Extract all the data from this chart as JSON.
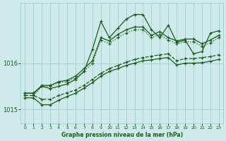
{
  "title": "Graphe pression niveau de la mer (hPa)",
  "background_color": "#ceeaea",
  "grid_color": "#9ecece",
  "line_color": "#1a5c1a",
  "text_color": "#1a5c1a",
  "ylim": [
    1014.7,
    1017.3
  ],
  "yticks": [
    1015,
    1016
  ],
  "xlim": [
    -0.5,
    23.5
  ],
  "xticks": [
    0,
    1,
    2,
    3,
    4,
    5,
    6,
    7,
    8,
    9,
    10,
    11,
    12,
    13,
    14,
    15,
    16,
    17,
    18,
    19,
    20,
    21,
    22,
    23
  ],
  "x": [
    0,
    1,
    2,
    3,
    4,
    5,
    6,
    7,
    8,
    9,
    10,
    11,
    12,
    13,
    14,
    15,
    16,
    17,
    18,
    19,
    20,
    21,
    22,
    23
  ],
  "y_main": [
    1015.35,
    1015.35,
    1015.5,
    1015.45,
    1015.5,
    1015.55,
    1015.65,
    1015.82,
    1016.3,
    1016.9,
    1016.55,
    1016.75,
    1016.95,
    1017.05,
    1017.05,
    1016.72,
    1016.55,
    1016.82,
    1016.45,
    1016.5,
    1016.2,
    1016.25,
    1016.65,
    1016.7
  ],
  "y_mid1": [
    1015.35,
    1015.35,
    1015.52,
    1015.52,
    1015.6,
    1015.63,
    1015.72,
    1015.88,
    1016.05,
    1016.55,
    1016.48,
    1016.62,
    1016.72,
    1016.78,
    1016.78,
    1016.6,
    1016.68,
    1016.55,
    1016.48,
    1016.52,
    1016.52,
    1016.42,
    1016.5,
    1016.6
  ],
  "y_mid2": [
    1015.3,
    1015.3,
    1015.5,
    1015.5,
    1015.58,
    1015.6,
    1015.68,
    1015.82,
    1016.0,
    1016.5,
    1016.42,
    1016.55,
    1016.65,
    1016.72,
    1016.72,
    1016.55,
    1016.62,
    1016.5,
    1016.42,
    1016.46,
    1016.46,
    1016.36,
    1016.44,
    1016.55
  ],
  "y_low1": [
    1015.3,
    1015.3,
    1015.22,
    1015.22,
    1015.3,
    1015.36,
    1015.42,
    1015.52,
    1015.65,
    1015.78,
    1015.88,
    1015.95,
    1016.02,
    1016.08,
    1016.12,
    1016.15,
    1016.18,
    1016.2,
    1016.05,
    1016.1,
    1016.1,
    1016.12,
    1016.14,
    1016.18
  ],
  "y_low2": [
    1015.25,
    1015.25,
    1015.1,
    1015.1,
    1015.2,
    1015.28,
    1015.35,
    1015.46,
    1015.58,
    1015.72,
    1015.82,
    1015.88,
    1015.95,
    1016.0,
    1016.05,
    1016.07,
    1016.1,
    1016.12,
    1015.96,
    1016.0,
    1016.0,
    1016.01,
    1016.04,
    1016.08
  ]
}
